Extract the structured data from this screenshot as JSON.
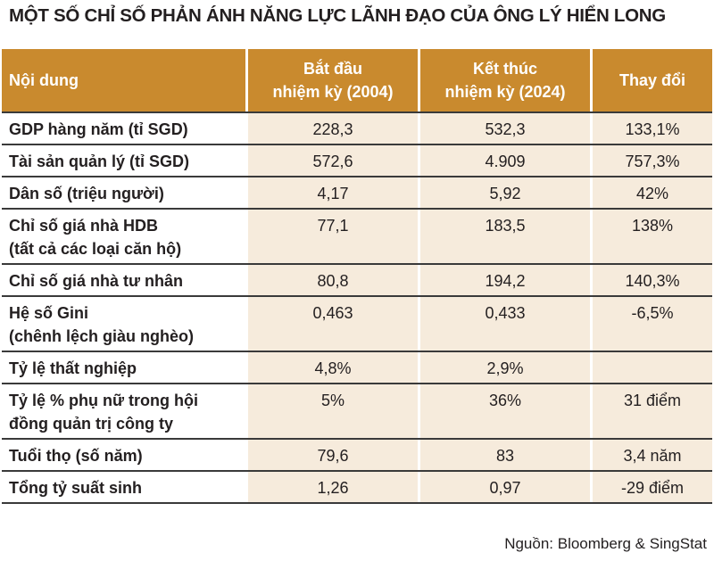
{
  "title": "MỘT SỐ CHỈ SỐ PHẢN ÁNH NĂNG LỰC LÃNH ĐẠO CỦA ÔNG LÝ HIỂN LONG",
  "table": {
    "header": [
      "Nội dung",
      "Bắt đầu\nnhiệm kỳ (2004)",
      "Kết thúc\nnhiệm kỳ (2024)",
      "Thay đổi"
    ],
    "rows": [
      [
        "GDP hàng năm (tỉ SGD)",
        "228,3",
        "532,3",
        "133,1%"
      ],
      [
        "Tài sản quản lý (tỉ SGD)",
        "572,6",
        "4.909",
        "757,3%"
      ],
      [
        "Dân số (triệu người)",
        "4,17",
        "5,92",
        "42%"
      ],
      [
        "Chỉ số giá nhà HDB\n(tất cả các loại căn hộ)",
        "77,1",
        "183,5",
        "138%"
      ],
      [
        "Chỉ số giá nhà tư nhân",
        "80,8",
        "194,2",
        "140,3%"
      ],
      [
        "Hệ số Gini\n(chênh lệch giàu nghèo)",
        "0,463",
        "0,433",
        "-6,5%"
      ],
      [
        "Tỷ lệ thất nghiệp",
        "4,8%",
        "2,9%"
      ],
      [
        "Tỷ lệ % phụ nữ trong hội\nđồng quản trị công ty",
        "5%",
        "36%",
        "31 điểm"
      ],
      [
        "Tuổi thọ (số năm)",
        "79,6",
        "83",
        "3,4 năm"
      ],
      [
        "Tổng tỷ suất sinh",
        "1,26",
        "0,97",
        "-29 điểm"
      ]
    ]
  },
  "source": "Nguồn: Bloomberg & SingStat"
}
